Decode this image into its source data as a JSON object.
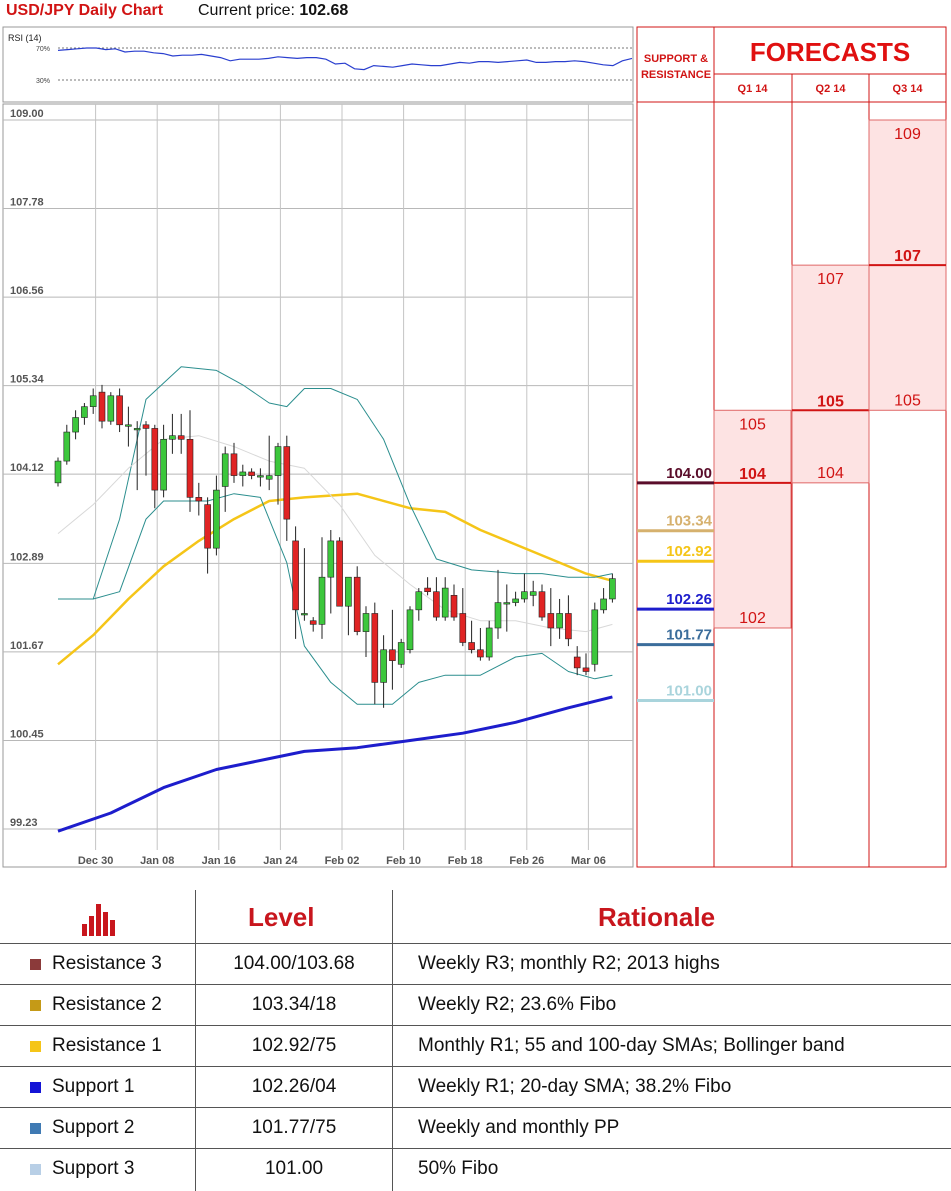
{
  "header": {
    "title": "USD/JPY Daily Chart",
    "price_label": "Current price: ",
    "price_value": "102.68"
  },
  "rsi": {
    "label": "RSI (14)",
    "levels": [
      "70%",
      "30%"
    ],
    "values": [
      67,
      68,
      69,
      70,
      70,
      68,
      69,
      65,
      66,
      66,
      64,
      63,
      60,
      61,
      61,
      62,
      60,
      58,
      54,
      56,
      56,
      56,
      57,
      59,
      58,
      57,
      58,
      58,
      56,
      50,
      51,
      44,
      43,
      48,
      47,
      46,
      48,
      50,
      49,
      48,
      48,
      50,
      52,
      51,
      53,
      53,
      52,
      53,
      54,
      55,
      52,
      52,
      53,
      53,
      54,
      53,
      51,
      49,
      48,
      54,
      57
    ]
  },
  "chart_data": {
    "type": "candlestick",
    "title": "USD/JPY Daily Chart",
    "xlabel": "",
    "ylabel": "",
    "ylim": [
      99.23,
      109.0
    ],
    "grid": true,
    "y_ticks": [
      "109.00",
      "107.78",
      "106.56",
      "105.34",
      "104.12",
      "102.89",
      "101.67",
      "100.45",
      "99.23"
    ],
    "x_ticks": [
      {
        "label": "Dec 30",
        "index": 2
      },
      {
        "label": "Jan 08",
        "index": 9
      },
      {
        "label": "Jan 16",
        "index": 16
      },
      {
        "label": "Jan 24",
        "index": 23
      },
      {
        "label": "Feb 02",
        "index": 30
      },
      {
        "label": "Feb 10",
        "index": 37
      },
      {
        "label": "Feb 18",
        "index": 44
      },
      {
        "label": "Feb 26",
        "index": 51
      },
      {
        "label": "Mar 06",
        "index": 58
      }
    ],
    "candles": [
      {
        "o": 104.0,
        "h": 104.35,
        "l": 103.95,
        "c": 104.3
      },
      {
        "o": 104.3,
        "h": 104.8,
        "l": 104.25,
        "c": 104.7
      },
      {
        "o": 104.7,
        "h": 105.0,
        "l": 104.6,
        "c": 104.9
      },
      {
        "o": 104.9,
        "h": 105.1,
        "l": 104.8,
        "c": 105.05
      },
      {
        "o": 105.05,
        "h": 105.3,
        "l": 104.95,
        "c": 105.2
      },
      {
        "o": 105.25,
        "h": 105.35,
        "l": 104.75,
        "c": 104.85
      },
      {
        "o": 104.85,
        "h": 105.25,
        "l": 104.8,
        "c": 105.2
      },
      {
        "o": 105.2,
        "h": 105.3,
        "l": 104.7,
        "c": 104.8
      },
      {
        "o": 104.8,
        "h": 105.05,
        "l": 104.5,
        "c": 104.8
      },
      {
        "o": 104.75,
        "h": 104.85,
        "l": 103.9,
        "c": 104.75
      },
      {
        "o": 104.8,
        "h": 104.85,
        "l": 104.1,
        "c": 104.75
      },
      {
        "o": 104.75,
        "h": 104.8,
        "l": 103.65,
        "c": 103.9
      },
      {
        "o": 103.9,
        "h": 104.8,
        "l": 103.8,
        "c": 104.6
      },
      {
        "o": 104.6,
        "h": 104.95,
        "l": 104.4,
        "c": 104.65
      },
      {
        "o": 104.65,
        "h": 104.95,
        "l": 104.4,
        "c": 104.6
      },
      {
        "o": 104.6,
        "h": 105.0,
        "l": 103.6,
        "c": 103.8
      },
      {
        "o": 103.8,
        "h": 104.0,
        "l": 103.55,
        "c": 103.75
      },
      {
        "o": 103.7,
        "h": 103.8,
        "l": 102.75,
        "c": 103.1
      },
      {
        "o": 103.1,
        "h": 104.1,
        "l": 103.0,
        "c": 103.9
      },
      {
        "o": 103.95,
        "h": 104.5,
        "l": 103.6,
        "c": 104.4
      },
      {
        "o": 104.4,
        "h": 104.55,
        "l": 104.0,
        "c": 104.1
      },
      {
        "o": 104.1,
        "h": 104.25,
        "l": 103.95,
        "c": 104.15
      },
      {
        "o": 104.15,
        "h": 104.2,
        "l": 104.05,
        "c": 104.1
      },
      {
        "o": 104.1,
        "h": 104.2,
        "l": 103.95,
        "c": 104.1
      },
      {
        "o": 104.05,
        "h": 104.65,
        "l": 103.9,
        "c": 104.1
      },
      {
        "o": 104.1,
        "h": 104.55,
        "l": 103.7,
        "c": 104.5
      },
      {
        "o": 104.5,
        "h": 104.65,
        "l": 103.2,
        "c": 103.5
      },
      {
        "o": 103.2,
        "h": 103.4,
        "l": 101.85,
        "c": 102.25
      },
      {
        "o": 102.2,
        "h": 103.1,
        "l": 102.1,
        "c": 102.2
      },
      {
        "o": 102.1,
        "h": 102.15,
        "l": 101.95,
        "c": 102.05
      },
      {
        "o": 102.05,
        "h": 103.25,
        "l": 101.85,
        "c": 102.7
      },
      {
        "o": 102.7,
        "h": 103.35,
        "l": 102.2,
        "c": 103.2
      },
      {
        "o": 103.2,
        "h": 103.25,
        "l": 102.3,
        "c": 102.3
      },
      {
        "o": 102.3,
        "h": 102.7,
        "l": 101.9,
        "c": 102.7
      },
      {
        "o": 102.7,
        "h": 102.85,
        "l": 101.9,
        "c": 101.95
      },
      {
        "o": 101.95,
        "h": 102.3,
        "l": 101.6,
        "c": 102.2
      },
      {
        "o": 102.2,
        "h": 102.35,
        "l": 100.95,
        "c": 101.25
      },
      {
        "o": 101.25,
        "h": 101.9,
        "l": 100.9,
        "c": 101.7
      },
      {
        "o": 101.7,
        "h": 102.25,
        "l": 101.15,
        "c": 101.55
      },
      {
        "o": 101.5,
        "h": 101.85,
        "l": 101.45,
        "c": 101.8
      },
      {
        "o": 101.7,
        "h": 102.3,
        "l": 101.65,
        "c": 102.25
      },
      {
        "o": 102.25,
        "h": 102.55,
        "l": 102.1,
        "c": 102.5
      },
      {
        "o": 102.55,
        "h": 102.7,
        "l": 102.45,
        "c": 102.5
      },
      {
        "o": 102.5,
        "h": 102.7,
        "l": 102.1,
        "c": 102.15
      },
      {
        "o": 102.15,
        "h": 102.7,
        "l": 102.1,
        "c": 102.55
      },
      {
        "o": 102.45,
        "h": 102.6,
        "l": 102.1,
        "c": 102.15
      },
      {
        "o": 102.2,
        "h": 102.55,
        "l": 101.75,
        "c": 101.8
      },
      {
        "o": 101.8,
        "h": 102.1,
        "l": 101.65,
        "c": 101.7
      },
      {
        "o": 101.7,
        "h": 102.0,
        "l": 101.55,
        "c": 101.6
      },
      {
        "o": 101.6,
        "h": 102.1,
        "l": 101.55,
        "c": 102.0
      },
      {
        "o": 102.0,
        "h": 102.8,
        "l": 101.85,
        "c": 102.35
      },
      {
        "o": 102.35,
        "h": 102.6,
        "l": 101.95,
        "c": 102.35
      },
      {
        "o": 102.35,
        "h": 102.5,
        "l": 102.3,
        "c": 102.4
      },
      {
        "o": 102.4,
        "h": 102.75,
        "l": 102.35,
        "c": 102.5
      },
      {
        "o": 102.45,
        "h": 102.65,
        "l": 102.3,
        "c": 102.5
      },
      {
        "o": 102.5,
        "h": 102.6,
        "l": 102.1,
        "c": 102.15
      },
      {
        "o": 102.2,
        "h": 102.55,
        "l": 101.75,
        "c": 102.0
      },
      {
        "o": 102.0,
        "h": 102.4,
        "l": 101.85,
        "c": 102.2
      },
      {
        "o": 102.2,
        "h": 102.45,
        "l": 101.75,
        "c": 101.85
      },
      {
        "o": 101.6,
        "h": 101.75,
        "l": 101.35,
        "c": 101.45
      },
      {
        "o": 101.45,
        "h": 101.65,
        "l": 101.35,
        "c": 101.4
      },
      {
        "o": 101.5,
        "h": 102.35,
        "l": 101.4,
        "c": 102.25
      },
      {
        "o": 102.25,
        "h": 102.55,
        "l": 102.2,
        "c": 102.4
      },
      {
        "o": 102.4,
        "h": 102.75,
        "l": 102.35,
        "c": 102.68
      }
    ],
    "lines": [
      {
        "name": "",
        "color": "#f5c518",
        "width": 2.5,
        "values": [
          {
            "i": 0,
            "v": 101.5
          },
          {
            "i": 4,
            "v": 101.9
          },
          {
            "i": 8,
            "v": 102.4
          },
          {
            "i": 12,
            "v": 102.85
          },
          {
            "i": 16,
            "v": 103.2
          },
          {
            "i": 20,
            "v": 103.5
          },
          {
            "i": 24,
            "v": 103.75
          },
          {
            "i": 28,
            "v": 103.8
          },
          {
            "i": 34,
            "v": 103.85
          },
          {
            "i": 40,
            "v": 103.65
          },
          {
            "i": 44,
            "v": 103.6
          },
          {
            "i": 48,
            "v": 103.35
          },
          {
            "i": 52,
            "v": 103.15
          },
          {
            "i": 56,
            "v": 102.95
          },
          {
            "i": 60,
            "v": 102.75
          },
          {
            "i": 63,
            "v": 102.65
          }
        ]
      },
      {
        "name": "",
        "color": "#1d1dcc",
        "width": 3,
        "values": [
          {
            "i": 0,
            "v": 99.2
          },
          {
            "i": 6,
            "v": 99.45
          },
          {
            "i": 12,
            "v": 99.8
          },
          {
            "i": 18,
            "v": 100.05
          },
          {
            "i": 24,
            "v": 100.2
          },
          {
            "i": 28,
            "v": 100.3
          },
          {
            "i": 34,
            "v": 100.35
          },
          {
            "i": 40,
            "v": 100.45
          },
          {
            "i": 46,
            "v": 100.55
          },
          {
            "i": 52,
            "v": 100.7
          },
          {
            "i": 58,
            "v": 100.9
          },
          {
            "i": 63,
            "v": 101.05
          }
        ]
      },
      {
        "name": "",
        "color": "#2b8e8e",
        "width": 1,
        "values": [
          {
            "i": 0,
            "v": 102.4
          },
          {
            "i": 4,
            "v": 102.4
          },
          {
            "i": 7,
            "v": 103.5
          },
          {
            "i": 10,
            "v": 105.15
          },
          {
            "i": 14,
            "v": 105.6
          },
          {
            "i": 18,
            "v": 105.55
          },
          {
            "i": 21,
            "v": 105.35
          },
          {
            "i": 24,
            "v": 105.1
          },
          {
            "i": 26,
            "v": 105.05
          },
          {
            "i": 28,
            "v": 105.3
          },
          {
            "i": 31,
            "v": 105.3
          },
          {
            "i": 34,
            "v": 105.15
          },
          {
            "i": 37,
            "v": 104.6
          },
          {
            "i": 40,
            "v": 103.7
          },
          {
            "i": 43,
            "v": 102.95
          },
          {
            "i": 47,
            "v": 102.8
          },
          {
            "i": 52,
            "v": 102.75
          },
          {
            "i": 55,
            "v": 102.75
          },
          {
            "i": 58,
            "v": 102.7
          },
          {
            "i": 61,
            "v": 102.7
          },
          {
            "i": 63,
            "v": 102.75
          }
        ]
      },
      {
        "name": "",
        "color": "#2b8e8e",
        "width": 1,
        "values": [
          {
            "i": 0,
            "v": 102.4
          },
          {
            "i": 4,
            "v": 102.4
          },
          {
            "i": 7,
            "v": 102.5
          },
          {
            "i": 10,
            "v": 103.5
          },
          {
            "i": 12,
            "v": 103.75
          },
          {
            "i": 14,
            "v": 103.75
          },
          {
            "i": 17,
            "v": 103.75
          },
          {
            "i": 20,
            "v": 103.85
          },
          {
            "i": 23,
            "v": 103.8
          },
          {
            "i": 26,
            "v": 102.9
          },
          {
            "i": 28,
            "v": 101.75
          },
          {
            "i": 31,
            "v": 101.25
          },
          {
            "i": 34,
            "v": 100.95
          },
          {
            "i": 38,
            "v": 100.95
          },
          {
            "i": 41,
            "v": 101.25
          },
          {
            "i": 44,
            "v": 101.35
          },
          {
            "i": 48,
            "v": 101.35
          },
          {
            "i": 52,
            "v": 101.6
          },
          {
            "i": 55,
            "v": 101.65
          },
          {
            "i": 58,
            "v": 101.4
          },
          {
            "i": 61,
            "v": 101.3
          },
          {
            "i": 63,
            "v": 101.35
          }
        ]
      },
      {
        "name": "",
        "color": "#d8d8d8",
        "width": 1,
        "values": [
          {
            "i": 0,
            "v": 103.3
          },
          {
            "i": 4,
            "v": 103.7
          },
          {
            "i": 8,
            "v": 104.2
          },
          {
            "i": 12,
            "v": 104.6
          },
          {
            "i": 16,
            "v": 104.65
          },
          {
            "i": 20,
            "v": 104.5
          },
          {
            "i": 24,
            "v": 104.3
          },
          {
            "i": 28,
            "v": 104.2
          },
          {
            "i": 32,
            "v": 103.7
          },
          {
            "i": 36,
            "v": 103.0
          },
          {
            "i": 40,
            "v": 102.6
          },
          {
            "i": 44,
            "v": 102.25
          },
          {
            "i": 48,
            "v": 102.1
          },
          {
            "i": 52,
            "v": 102.1
          },
          {
            "i": 56,
            "v": 102.0
          },
          {
            "i": 60,
            "v": 101.95
          },
          {
            "i": 63,
            "v": 102.05
          }
        ]
      }
    ],
    "support_resistance": {
      "heading_1": "SUPPORT &",
      "heading_2": "RESISTANCE",
      "levels": [
        {
          "label": "104.00",
          "value": 104.0,
          "color": "#5a0d2a"
        },
        {
          "label": "103.34",
          "value": 103.34,
          "color": "#d6b16e"
        },
        {
          "label": "102.92",
          "value": 102.92,
          "color": "#f5c518"
        },
        {
          "label": "102.26",
          "value": 102.26,
          "color": "#1d1dcc"
        },
        {
          "label": "101.77",
          "value": 101.77,
          "color": "#3b6d9b"
        },
        {
          "label": "101.00",
          "value": 101.0,
          "color": "#a9d4dc"
        }
      ]
    },
    "forecasts": {
      "title": "FORECASTS",
      "quarters": [
        {
          "label": "Q1 14",
          "high": 105,
          "mid": 104,
          "low": 102,
          "labels": [
            "105",
            "104",
            "102"
          ]
        },
        {
          "label": "Q2 14",
          "high": 107,
          "mid": 105,
          "low": 104,
          "labels": [
            "107",
            "105",
            "104"
          ]
        },
        {
          "label": "Q3 14",
          "high": 109,
          "mid": 107,
          "low": 105,
          "labels": [
            "109",
            "107",
            "105"
          ]
        }
      ]
    }
  },
  "table": {
    "col_level": "Level",
    "col_rationale": "Rationale",
    "rows": [
      {
        "name": "Resistance 3",
        "level": "104.00/103.68",
        "rationale": "Weekly R3; monthly R2; 2013 highs",
        "color": "#8b3a3a"
      },
      {
        "name": "Resistance 2",
        "level": "103.34/18",
        "rationale": "Weekly R2; 23.6% Fibo",
        "color": "#c59a17"
      },
      {
        "name": "Resistance 1",
        "level": "102.92/75",
        "rationale": "Monthly R1; 55 and 100-day SMAs; Bollinger band",
        "color": "#f5c518"
      },
      {
        "name": "Support 1",
        "level": "102.26/04",
        "rationale": "Weekly R1; 20-day SMA; 38.2% Fibo",
        "color": "#1414d6"
      },
      {
        "name": "Support 2",
        "level": "101.77/75",
        "rationale": "Weekly and monthly PP",
        "color": "#3f7ab3"
      },
      {
        "name": "Support 3",
        "level": "101.00",
        "rationale": "50% Fibo",
        "color": "#b8cfe6"
      }
    ]
  }
}
